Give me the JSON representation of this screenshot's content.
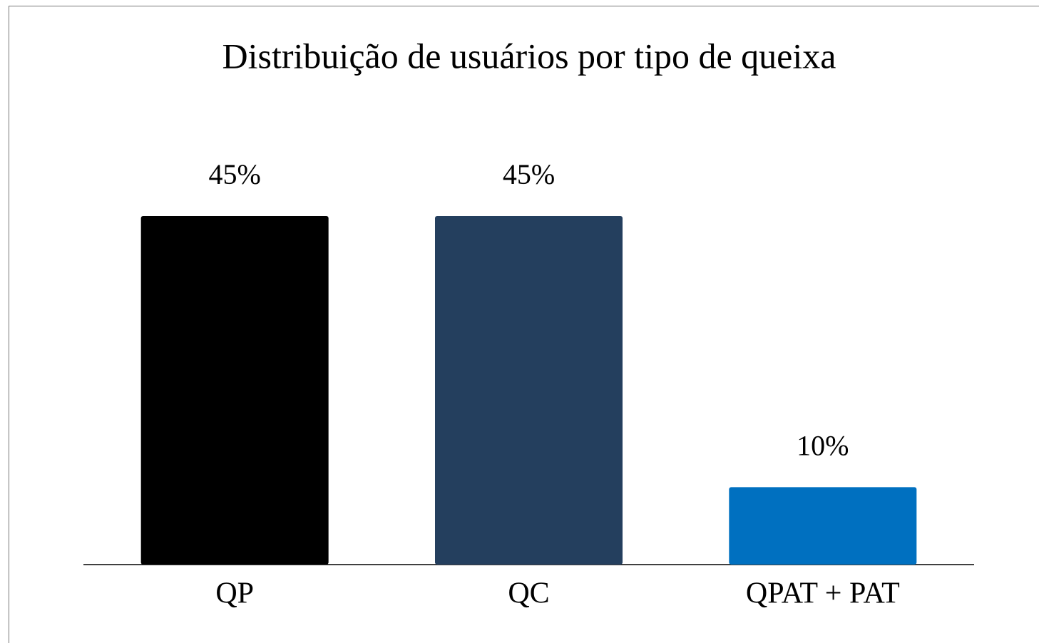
{
  "chart_data": {
    "type": "bar",
    "title": "Distribuição de usuários por tipo de queixa",
    "categories": [
      "QP",
      "QC",
      "QPAT + PAT"
    ],
    "values": [
      45,
      45,
      10
    ],
    "value_labels": [
      "45%",
      "45%",
      "10%"
    ],
    "colors": [
      "#000000",
      "#243f5e",
      "#0070c0"
    ]
  }
}
